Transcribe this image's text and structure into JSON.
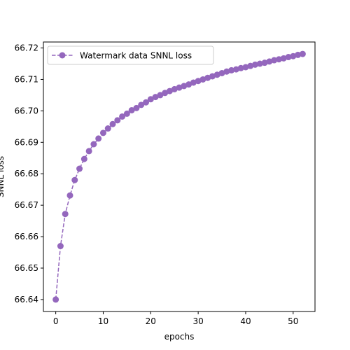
{
  "chart_data": {
    "type": "line",
    "title": "",
    "xlabel": "epochs",
    "ylabel": "SNNL loss",
    "xlim": [
      -2.6,
      54.6
    ],
    "ylim": [
      66.6362,
      66.7219
    ],
    "xticks": [
      0,
      10,
      20,
      30,
      40,
      50
    ],
    "yticks": [
      66.64,
      66.65,
      66.66,
      66.67,
      66.68,
      66.69,
      66.7,
      66.71,
      66.72
    ],
    "ytick_labels": [
      "66.64",
      "66.65",
      "66.66",
      "66.67",
      "66.68",
      "66.69",
      "66.70",
      "66.71",
      "66.72"
    ],
    "legend_position": "upper-left",
    "grid": false,
    "series": [
      {
        "name": "Watermark data SNNL loss",
        "color": "#9467bd",
        "line_style": "dashed",
        "marker": "circle",
        "x": [
          0,
          1,
          2,
          3,
          4,
          5,
          6,
          7,
          8,
          9,
          10,
          11,
          12,
          13,
          14,
          15,
          16,
          17,
          18,
          19,
          20,
          21,
          22,
          23,
          24,
          25,
          26,
          27,
          28,
          29,
          30,
          31,
          32,
          33,
          34,
          35,
          36,
          37,
          38,
          39,
          40,
          41,
          42,
          43,
          44,
          45,
          46,
          47,
          48,
          49,
          50,
          51,
          52
        ],
        "values": [
          66.64,
          66.657,
          66.6672,
          66.6731,
          66.678,
          66.6816,
          66.6847,
          66.6872,
          66.6894,
          66.6912,
          66.693,
          66.6944,
          66.6958,
          66.697,
          66.6982,
          66.6991,
          66.7002,
          66.7009,
          66.7019,
          66.7027,
          66.7037,
          66.7044,
          66.705,
          66.7057,
          66.7063,
          66.7069,
          66.7074,
          66.7079,
          66.7084,
          66.709,
          66.7095,
          66.71,
          66.7105,
          66.711,
          66.7115,
          66.712,
          66.7125,
          66.7129,
          66.7132,
          66.7136,
          66.7139,
          66.7143,
          66.7147,
          66.715,
          66.7153,
          66.7157,
          66.7161,
          66.7164,
          66.7167,
          66.7171,
          66.7174,
          66.7178,
          66.7181
        ]
      }
    ]
  }
}
